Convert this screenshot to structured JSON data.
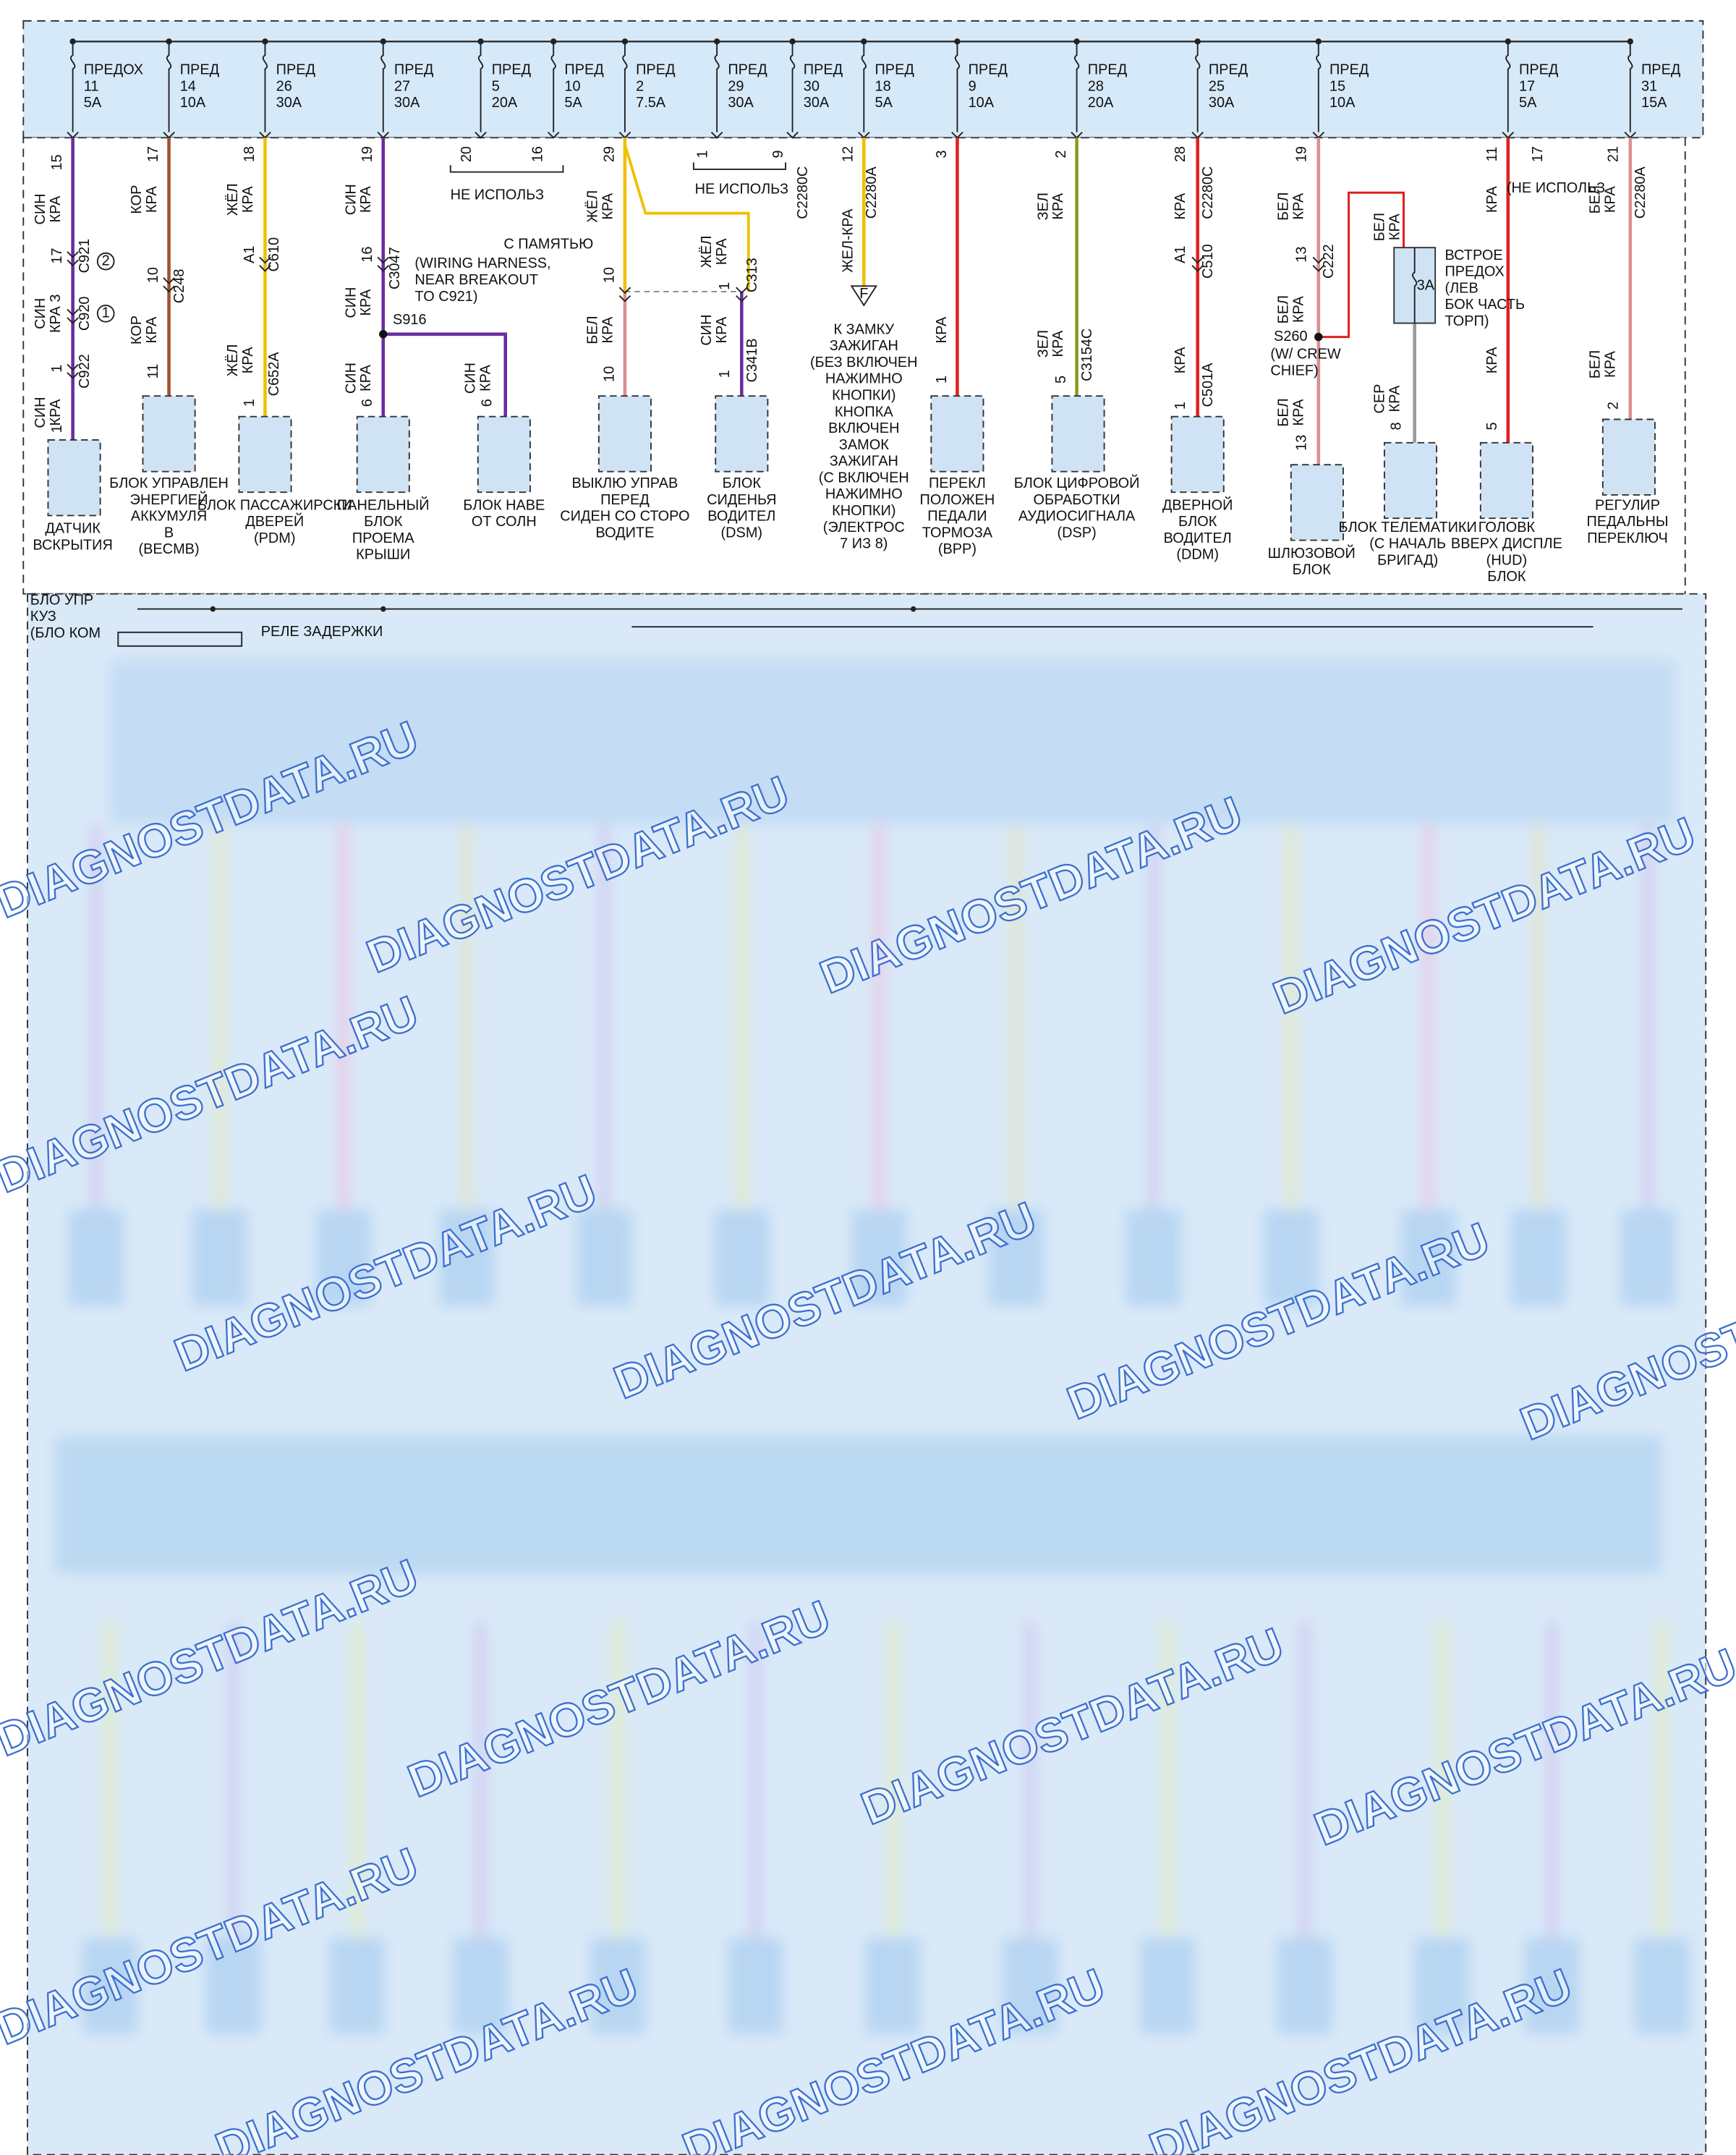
{
  "fuses": [
    {
      "name": "ПРЕДОХ",
      "num": "11",
      "rating": "5A"
    },
    {
      "name": "ПРЕД",
      "num": "14",
      "rating": "10A"
    },
    {
      "name": "ПРЕД",
      "num": "26",
      "rating": "30A"
    },
    {
      "name": "ПРЕД",
      "num": "27",
      "rating": "30A"
    },
    {
      "name": "ПРЕД",
      "num": "5",
      "rating": "20A"
    },
    {
      "name": "ПРЕД",
      "num": "10",
      "rating": "5A"
    },
    {
      "name": "ПРЕД",
      "num": "2",
      "rating": "7.5A"
    },
    {
      "name": "ПРЕД",
      "num": "29",
      "rating": "30A"
    },
    {
      "name": "ПРЕД",
      "num": "30",
      "rating": "30A"
    },
    {
      "name": "ПРЕД",
      "num": "18",
      "rating": "5A"
    },
    {
      "name": "ПРЕД",
      "num": "9",
      "rating": "10A"
    },
    {
      "name": "ПРЕД",
      "num": "28",
      "rating": "20A"
    },
    {
      "name": "ПРЕД",
      "num": "25",
      "rating": "30A"
    },
    {
      "name": "ПРЕД",
      "num": "15",
      "rating": "10A"
    },
    {
      "name": "ПРЕД",
      "num": "17",
      "rating": "5A"
    },
    {
      "name": "ПРЕД",
      "num": "31",
      "rating": "15A"
    }
  ],
  "wiring": [
    "15",
    [
      "СИН",
      "КРА"
    ],
    "17",
    "C921",
    "2",
    [
      "СИН",
      "КРА 3"
    ],
    "C920",
    "1",
    "1",
    "C922",
    [
      "СИН",
      "КРА"
    ],
    "1",
    "17",
    [
      "КОР",
      "КРА"
    ],
    "10",
    "C248",
    [
      "КОР",
      "КРА"
    ],
    "11",
    "18",
    [
      "ЖЁЛ",
      "КРА"
    ],
    "A1",
    "C610",
    [
      "ЖЁЛ",
      "КРА"
    ],
    "1",
    "C652A",
    "19",
    [
      "СИН",
      "КРА"
    ],
    "16",
    "C3047",
    [
      "СИН",
      "КРА"
    ],
    [
      "(WIRING HARNESS,",
      "NEAR BREAKOUT",
      "TO C921)"
    ],
    "S916",
    [
      "СИН",
      "КРА"
    ],
    "6",
    [
      "СИН",
      "КРА"
    ],
    "6",
    "20",
    "16",
    "НЕ ИСПОЛЬЗ",
    "29",
    [
      "ЖЁЛ",
      "КРА"
    ],
    "С ПАМЯТЬЮ",
    "10",
    [
      "БЕЛ",
      "КРА"
    ],
    "10",
    "1",
    "9",
    "НЕ ИСПОЛЬЗ",
    [
      "ЖЁЛ",
      "КРА"
    ],
    "C313",
    "1",
    [
      "СИН",
      "КРА"
    ],
    "C341B",
    "1",
    "C2280C",
    "12",
    "ЖЕЛ-КРА",
    "C2280A",
    "F",
    "3",
    "КРА",
    "1",
    "2",
    [
      "ЗЕЛ",
      "КРА"
    ],
    [
      "ЗЕЛ",
      "КРА"
    ],
    "5",
    "C3154C",
    "28",
    "КРА",
    "C2280C",
    "A1",
    "C510",
    "КРА",
    "1",
    "C501A",
    "19",
    [
      "БЕЛ",
      "КРА"
    ],
    "13",
    "C222",
    [
      "БЕЛ",
      "КРА"
    ],
    "S260",
    [
      "(W/ CREW",
      "CHIEF)"
    ],
    [
      "БЕЛ",
      "КРА"
    ],
    "13",
    [
      "БЕЛ",
      "КРА"
    ],
    "3A",
    [
      "ВСТРОЕ",
      "ПРЕДОХ",
      "(ЛЕВ",
      "БОК ЧАСТЬ",
      "ТОРП)"
    ],
    [
      "СЕР",
      "КРА"
    ],
    "8",
    "11",
    "(НЕ ИСПОЛЬЗ",
    "КРА",
    "КРА",
    "5",
    "17",
    "21",
    [
      "БЕЛ",
      "КРА"
    ],
    "C2280A",
    [
      "БЕЛ",
      "КРА"
    ],
    "2"
  ],
  "components": [
    [
      "ДАТЧИК",
      "ВСКРЫТИЯ"
    ],
    [
      "БЛОК УПРАВЛЕН",
      "ЭНЕРГИЕЙ",
      "АККУМУЛЯ",
      "В",
      "(BECMB)"
    ],
    [
      "БЛОК ПАССАЖИРСКИ",
      "ДВЕРЕЙ",
      "(PDM)"
    ],
    [
      "ПАНЕЛЬНЫЙ",
      "БЛОК",
      "ПРОЕМА",
      "КРЫШИ"
    ],
    [
      "БЛОК НАВЕ",
      "ОТ СОЛН"
    ],
    [
      "ВЫКЛЮ УПРАВ",
      "ПЕРЕД",
      "СИДЕН СО СТОРО",
      "ВОДИТЕ"
    ],
    [
      "БЛОК",
      "СИДЕНЬЯ",
      "ВОДИТЕЛ",
      "(DSM)"
    ],
    [
      "ПЕРЕКЛ",
      "ПОЛОЖЕН",
      "ПЕДАЛИ",
      "ТОРМОЗА",
      "(BPP)"
    ],
    [
      "БЛОК ЦИФРОВОЙ",
      "ОБРАБОТКИ",
      "АУДИОСИГНАЛА",
      "(DSP)"
    ],
    [
      "ДВЕРНОЙ",
      "БЛОК",
      "ВОДИТЕЛ",
      "(DDM)"
    ],
    [
      "ШЛЮЗОВОЙ",
      "БЛОК"
    ],
    [
      "БЛОК ТЕЛЕМАТИКИ",
      "(С НАЧАЛЬ",
      "БРИГАД)"
    ],
    [
      "ГОЛОВК",
      "ВВЕРХ ДИСПЛЕ",
      "(HUD)",
      "БЛОК"
    ],
    [
      "РЕГУЛИР",
      "ПЕДАЛЬНЫ",
      "ПЕРЕКЛЮЧ"
    ]
  ],
  "ignition_note": [
    "К ЗАМКУ",
    "ЗАЖИГАН",
    "(БЕЗ ВКЛЮЧЕН",
    "НАЖИМНО",
    "КНОПКИ)",
    "КНОПКА",
    "ВКЛЮЧЕН",
    "ЗАМОК",
    "ЗАЖИГАН",
    "(С ВКЛЮЧЕН",
    "НАЖИМНО",
    "КНОПКИ)",
    "(ЭЛЕКТРОС",
    "7 ИЗ 8)"
  ],
  "bcm": {
    "title": [
      "БЛО УПР",
      "КУЗ",
      "(БЛО КОМ"
    ],
    "relay": "РЕЛЕ ЗАДЕРЖКИ"
  },
  "watermark": "DIAGNOSTDATA.RU"
}
